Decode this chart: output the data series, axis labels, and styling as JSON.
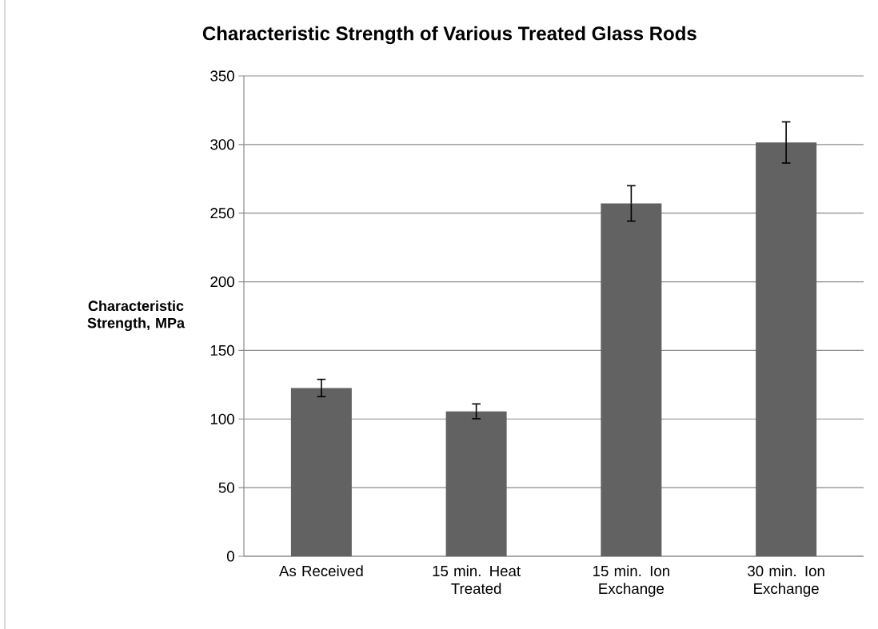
{
  "chart_data": {
    "type": "bar",
    "title": "Characteristic Strength of Various Treated Glass Rods",
    "ylabel": "Characteristic Strength, MPa",
    "categories": [
      "As Received",
      "15 min. Heat Treated",
      "15 min. Ion Exchange",
      "30 min. Ion Exchange"
    ],
    "values": [
      122.6,
      105.6,
      257.1,
      301.5
    ],
    "errors": [
      6.3,
      5.4,
      12.9,
      15
    ],
    "color": "#626262",
    "ylim": [
      0,
      350
    ],
    "yticks": [
      0,
      50,
      100,
      150,
      200,
      250,
      300,
      350
    ],
    "grid": "y"
  }
}
